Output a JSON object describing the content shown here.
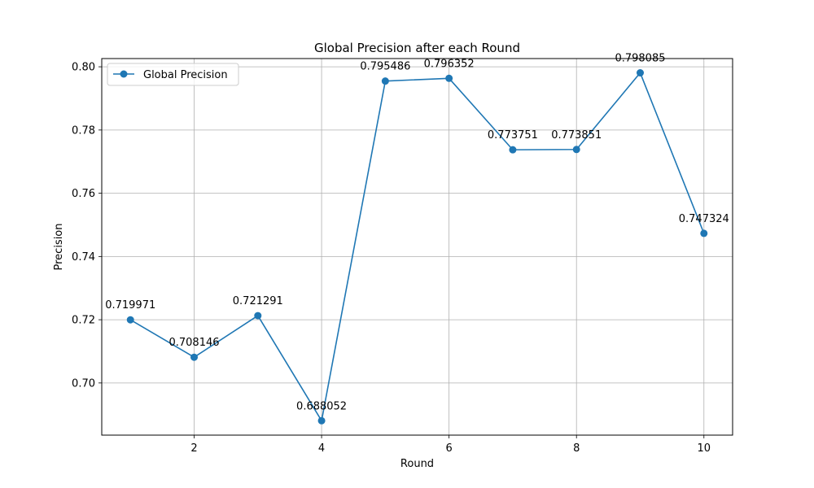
{
  "chart_data": {
    "type": "line",
    "title": "Global Precision after each Round",
    "xlabel": "Round",
    "ylabel": "Precision",
    "x": [
      1,
      2,
      3,
      4,
      5,
      6,
      7,
      8,
      9,
      10
    ],
    "series": [
      {
        "name": "Global Precision",
        "values": [
          0.719971,
          0.708146,
          0.721291,
          0.688052,
          0.795486,
          0.796352,
          0.773751,
          0.773851,
          0.798085,
          0.747324
        ],
        "labels": [
          "0.719971",
          "0.708146",
          "0.721291",
          "0.688052",
          "0.795486",
          "0.796352",
          "0.773751",
          "0.773851",
          "0.798085",
          "0.747324"
        ],
        "color": "#1f77b4",
        "marker": "circle"
      }
    ],
    "xlim": [
      0.55,
      10.45
    ],
    "ylim": [
      0.6835,
      0.8026
    ],
    "xticks": [
      2,
      4,
      6,
      8,
      10
    ],
    "xtick_labels": [
      "2",
      "4",
      "6",
      "8",
      "10"
    ],
    "yticks": [
      0.7,
      0.72,
      0.74,
      0.76,
      0.78,
      0.8
    ],
    "ytick_labels": [
      "0.70",
      "0.72",
      "0.74",
      "0.76",
      "0.78",
      "0.80"
    ],
    "grid": true,
    "legend": "upper-left"
  }
}
